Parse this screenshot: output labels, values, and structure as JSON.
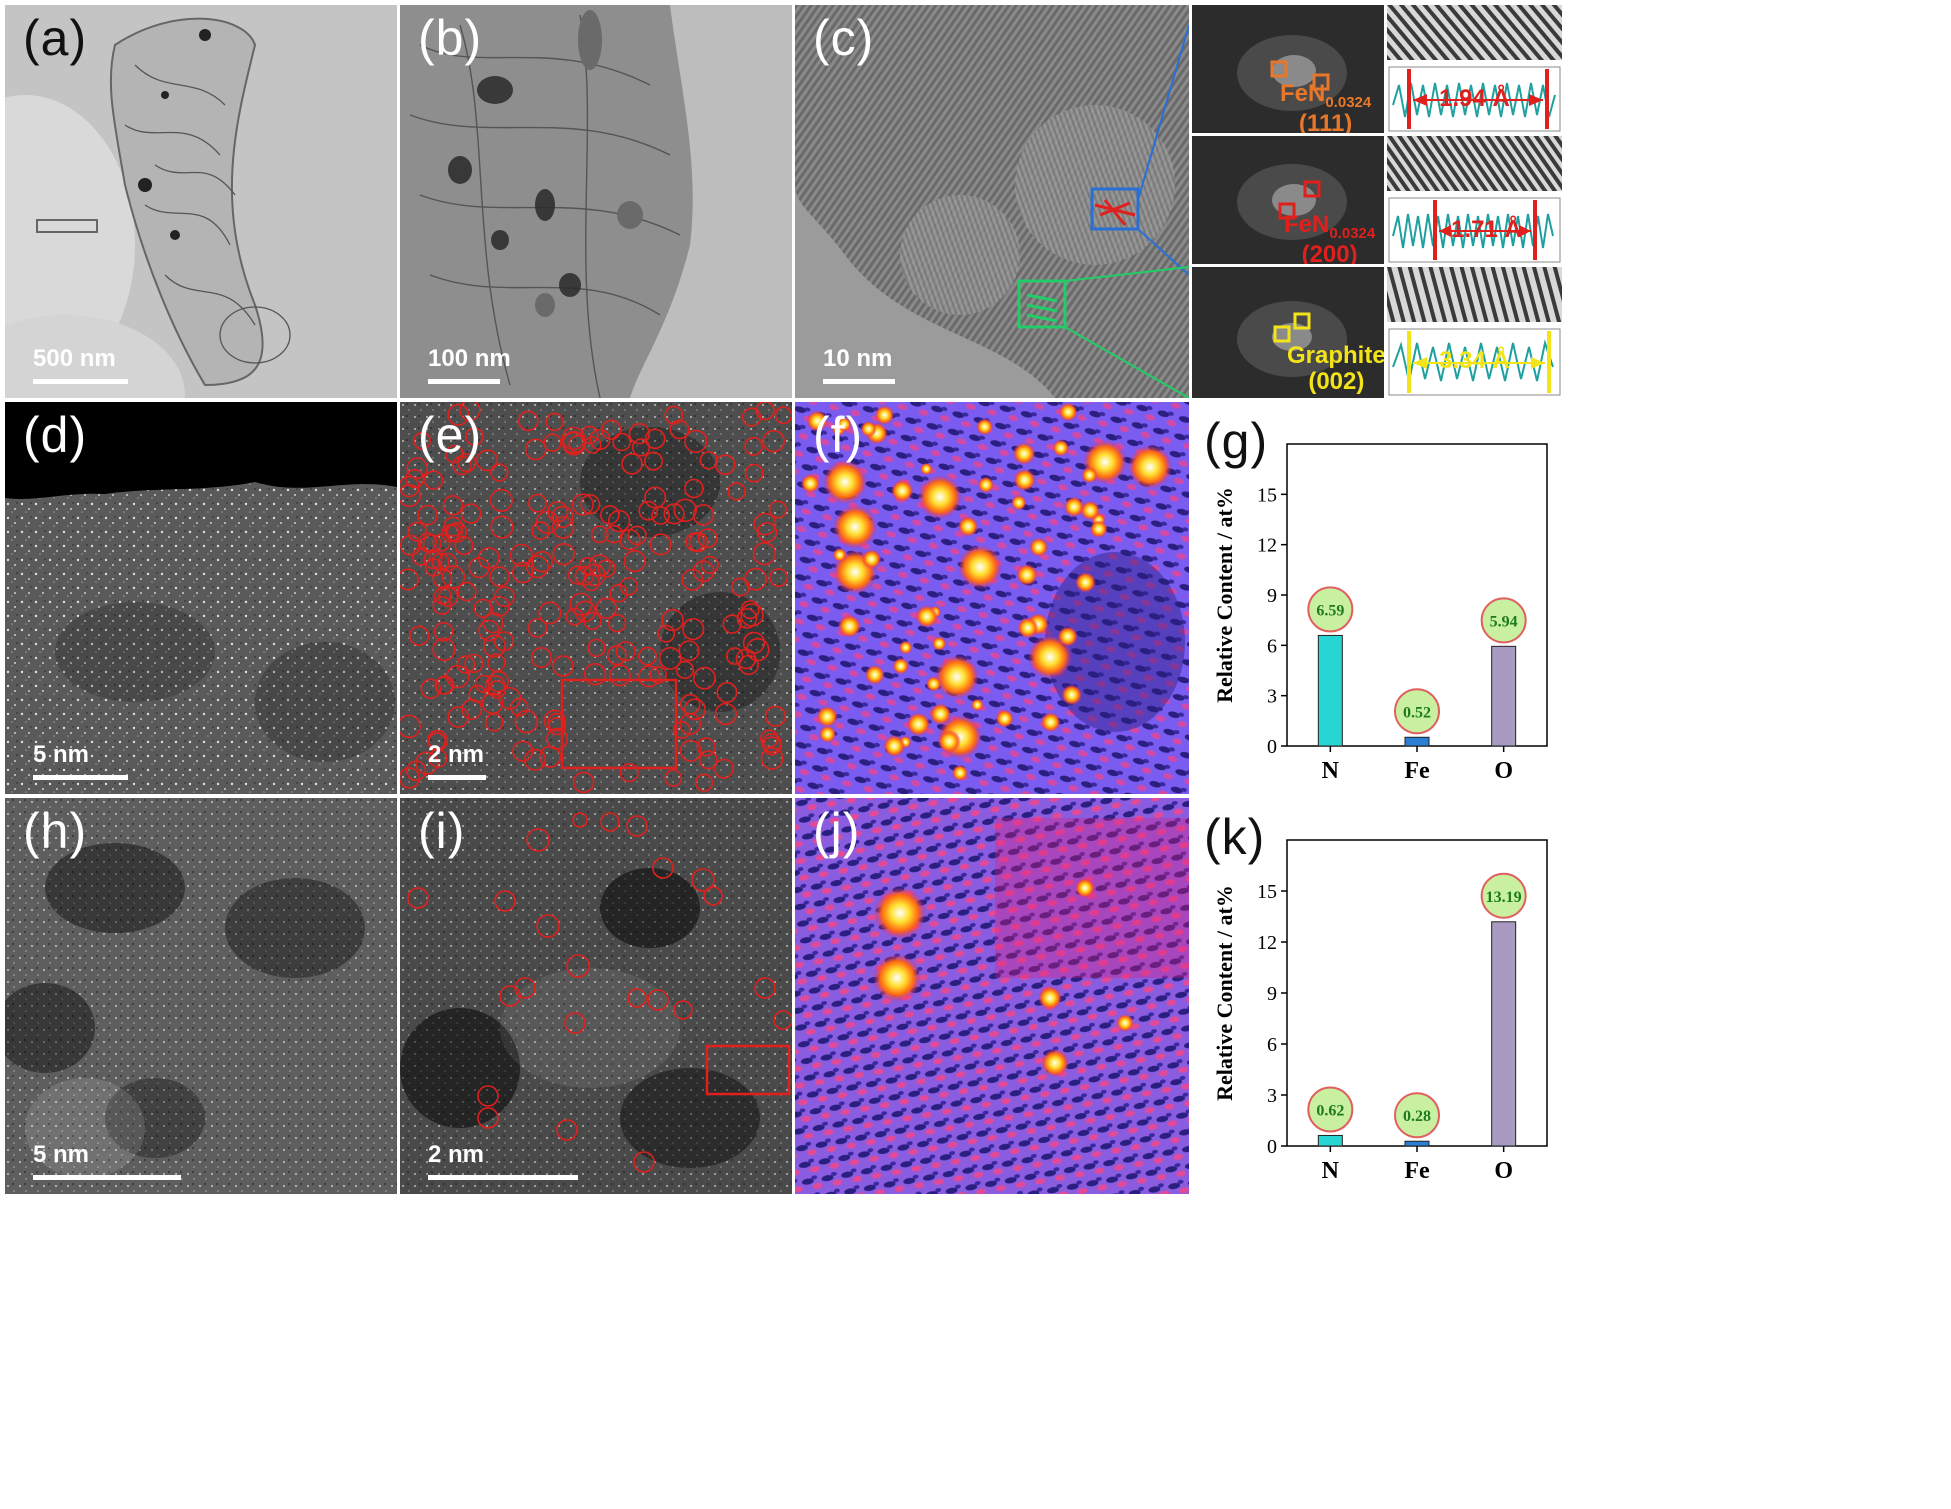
{
  "panels": {
    "a": {
      "label": "(a)",
      "scale": "500 nm"
    },
    "b": {
      "label": "(b)",
      "scale": "100 nm"
    },
    "c": {
      "label": "(c)",
      "scale": "10 nm"
    },
    "d": {
      "label": "(d)",
      "scale": "5 nm"
    },
    "e": {
      "label": "(e)",
      "scale": "2 nm"
    },
    "f": {
      "label": "(f)"
    },
    "g": {
      "label": "(g)"
    },
    "h": {
      "label": "(h)",
      "scale": "5 nm"
    },
    "i": {
      "label": "(i)",
      "scale": "2 nm"
    },
    "j": {
      "label": "(j)"
    },
    "k": {
      "label": "(k)"
    }
  },
  "fft": [
    {
      "name_main": "FeN",
      "name_sub": "0.0324",
      "plane": "(111)",
      "color": "#e8772a",
      "spacing": "1.94 Å"
    },
    {
      "name_main": "FeN",
      "name_sub": "0.0324",
      "plane": "(200)",
      "color": "#e0201c",
      "spacing": "1.71 Å"
    },
    {
      "name_main": "Graphite",
      "name_sub": "",
      "plane": "(002)",
      "color": "#f2e419",
      "spacing": "3.34 Å"
    }
  ],
  "colors": {
    "N": "#29d4d4",
    "Fe": "#2a7fd4",
    "O": "#a89ac0",
    "badge": "#c8f0a0",
    "badge_ring": "#e06060",
    "badge_text": "#1e7a1e"
  },
  "chart_data": [
    {
      "type": "bar",
      "panel": "g",
      "categories": [
        "N",
        "Fe",
        "O"
      ],
      "values": [
        6.59,
        0.52,
        5.94
      ],
      "value_labels": [
        "6.59",
        "0.52",
        "5.94"
      ],
      "ylabel": "Relative Content / at%",
      "ylim": [
        0,
        18
      ],
      "yticks": [
        "0",
        "3",
        "6",
        "9",
        "12",
        "15"
      ]
    },
    {
      "type": "bar",
      "panel": "k",
      "categories": [
        "N",
        "Fe",
        "O"
      ],
      "values": [
        0.62,
        0.28,
        13.19
      ],
      "value_labels": [
        "0.62",
        "0.28",
        "13.19"
      ],
      "ylabel": "Relative Content / at%",
      "ylim": [
        0,
        18
      ],
      "yticks": [
        "0",
        "3",
        "6",
        "9",
        "12",
        "15"
      ]
    }
  ]
}
